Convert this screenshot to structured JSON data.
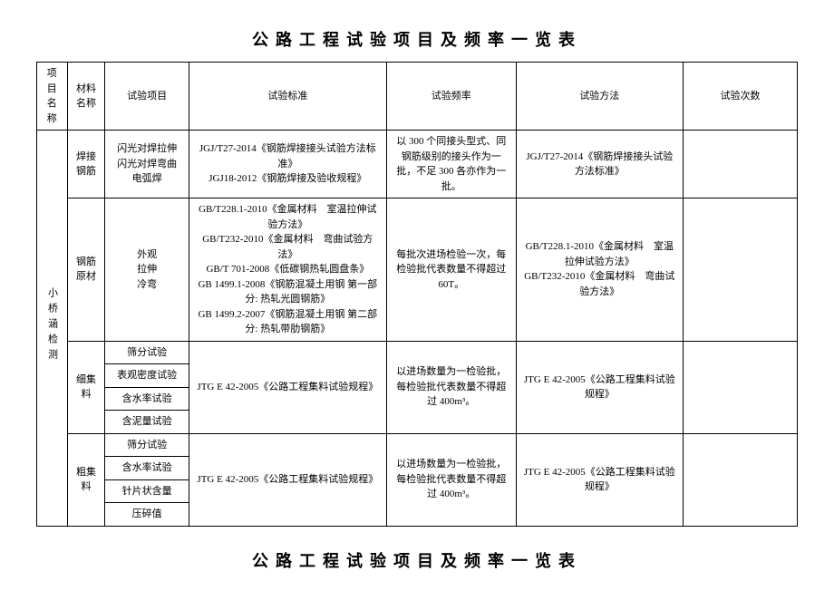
{
  "doc": {
    "title": "公路工程试验项目及频率一览表",
    "footer_title": "公路工程试验项目及频率一览表",
    "headers": {
      "project_name": "项目\n名称",
      "material_name": "材料\n名称",
      "test_item": "试验项目",
      "test_standard": "试验标准",
      "test_frequency": "试验频率",
      "test_method": "试验方法",
      "test_count": "试验次数"
    },
    "project_label": "小桥涵检测",
    "rows": [
      {
        "material": "焊接\n钢筋",
        "item": "闪光对焊拉伸\n闪光对焊弯曲\n电弧焊",
        "standard": "JGJ/T27-2014《钢筋焊接接头试验方法标准》\nJGJ18-2012《钢筋焊接及验收规程》",
        "frequency": "以 300 个同接头型式、同钢筋级别的接头作为一批，不足 300 各亦作为一批。",
        "method": "JGJ/T27-2014《钢筋焊接接头试验方法标准》",
        "count": ""
      },
      {
        "material": "钢筋\n原材",
        "item": "外观\n拉伸\n冷弯",
        "standard": "GB/T228.1-2010《金属材料　室温拉伸试验方法》\nGB/T232-2010《金属材料　弯曲试验方法》\nGB/T 701-2008《低碳钢热轧圆盘条》\nGB 1499.1-2008《钢筋混凝土用钢 第一部分: 热轧光圆钢筋》\nGB 1499.2-2007《钢筋混凝土用钢 第二部分: 热轧带肋钢筋》",
        "frequency": "每批次进场检验一次，每检验批代表数量不得超过 60T。",
        "method": "GB/T228.1-2010《金属材料　室温拉伸试验方法》\nGB/T232-2010《金属材料　弯曲试验方法》",
        "count": ""
      },
      {
        "material": "细集料",
        "items": [
          "筛分试验",
          "表观密度试验",
          "含水率试验",
          "含泥量试验"
        ],
        "standard": "JTG E 42-2005《公路工程集料试验规程》",
        "frequency": "以进场数量为一检验批，每检验批代表数量不得超过 400m³。",
        "method": "JTG E 42-2005《公路工程集料试验规程》",
        "count": ""
      },
      {
        "material": "粗集料",
        "items": [
          "筛分试验",
          "含水率试验",
          "针片状含量",
          "压碎值"
        ],
        "standard": "JTG E 42-2005《公路工程集料试验规程》",
        "frequency": "以进场数量为一检验批，每检验批代表数量不得超过 400m³。",
        "method": "JTG E 42-2005《公路工程集料试验规程》",
        "count": ""
      }
    ]
  }
}
